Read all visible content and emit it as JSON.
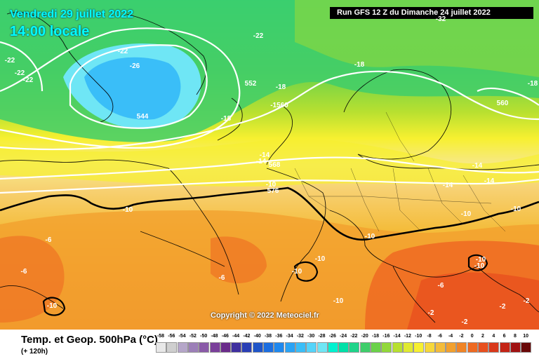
{
  "header": {
    "date": "Vendredi 29 juillet 2022",
    "time": "14:00 locale",
    "run": "Run GFS 12 Z du Dimanche 24 juillet 2022"
  },
  "copyright": "Copyright © 2022 Meteociel.fr",
  "footer": {
    "title": "Temp. et Geop. 500hPa (°C)",
    "subtitle": "(+ 120h)"
  },
  "scale": {
    "labels": [
      "-58",
      "-56",
      "-54",
      "-52",
      "-50",
      "-48",
      "-46",
      "-44",
      "-42",
      "-40",
      "-38",
      "-36",
      "-34",
      "-32",
      "-30",
      "-28",
      "-26",
      "-24",
      "-22",
      "-20",
      "-18",
      "-16",
      "-14",
      "-12",
      "-10",
      "-8",
      "-6",
      "-4",
      "-2",
      "0",
      "2",
      "4",
      "6",
      "8",
      "10"
    ],
    "colors": [
      "#e8e8e8",
      "#cfcfcf",
      "#b5a6c9",
      "#9c7fb8",
      "#8a5aa8",
      "#7a3f9a",
      "#6a2b8a",
      "#3f2f9f",
      "#2a3fb5",
      "#1f55c8",
      "#1c6ee0",
      "#1f88ee",
      "#2aa3f5",
      "#3abef8",
      "#55d4fa",
      "#6fe6f5",
      "#00f2d0",
      "#00e0a8",
      "#1fd48a",
      "#3fce6a",
      "#6bd24a",
      "#92d83a",
      "#b8e030",
      "#e0ea30",
      "#f7f030",
      "#f7d83a",
      "#f4bc3a",
      "#f2a02e",
      "#f08426",
      "#ee6a22",
      "#e8501e",
      "#d9381a",
      "#c42416",
      "#a01212",
      "#6a0808"
    ]
  },
  "contour_labels": [
    {
      "t": "-22",
      "c": "w"
    },
    {
      "t": "-22",
      "c": "w"
    },
    {
      "t": "-22",
      "c": "w"
    },
    {
      "t": "-22",
      "c": "w"
    },
    {
      "t": "-26",
      "c": "w"
    },
    {
      "t": "544",
      "c": "w"
    },
    {
      "t": "-22",
      "c": "w"
    },
    {
      "t": "552",
      "c": "w"
    },
    {
      "t": "-18",
      "c": "w"
    },
    {
      "t": "-1560",
      "c": "w"
    },
    {
      "t": "-18",
      "c": "w"
    },
    {
      "t": "-18",
      "c": "w"
    },
    {
      "t": "560",
      "c": "w"
    },
    {
      "t": "-18",
      "c": "w"
    },
    {
      "t": "-14",
      "c": "w"
    },
    {
      "t": "-14",
      "c": "w"
    },
    {
      "t": "568",
      "c": "w"
    },
    {
      "t": "-14",
      "c": "w"
    },
    {
      "t": "-14",
      "c": "w"
    },
    {
      "t": "-14",
      "c": "w"
    },
    {
      "t": "-10",
      "c": "w"
    },
    {
      "t": "576",
      "c": "w"
    },
    {
      "t": "-10",
      "c": "w"
    },
    {
      "t": "-10",
      "c": "w"
    },
    {
      "t": "-10",
      "c": "w"
    },
    {
      "t": "-10",
      "c": "w"
    },
    {
      "t": "-10",
      "c": "w"
    },
    {
      "t": "-10",
      "c": "w"
    },
    {
      "t": "-10",
      "c": "w"
    },
    {
      "t": "-10",
      "c": "w"
    },
    {
      "t": "-6",
      "c": "w"
    },
    {
      "t": "-6",
      "c": "w"
    },
    {
      "t": "-6",
      "c": "w"
    },
    {
      "t": "-6",
      "c": "w"
    },
    {
      "t": "-10",
      "c": "w"
    },
    {
      "t": "-10",
      "c": "w"
    },
    {
      "t": "-2",
      "c": "w"
    },
    {
      "t": "-2",
      "c": "w"
    },
    {
      "t": "-2",
      "c": "w"
    },
    {
      "t": "-2",
      "c": "w"
    },
    {
      "t": "-32",
      "c": "w"
    }
  ]
}
